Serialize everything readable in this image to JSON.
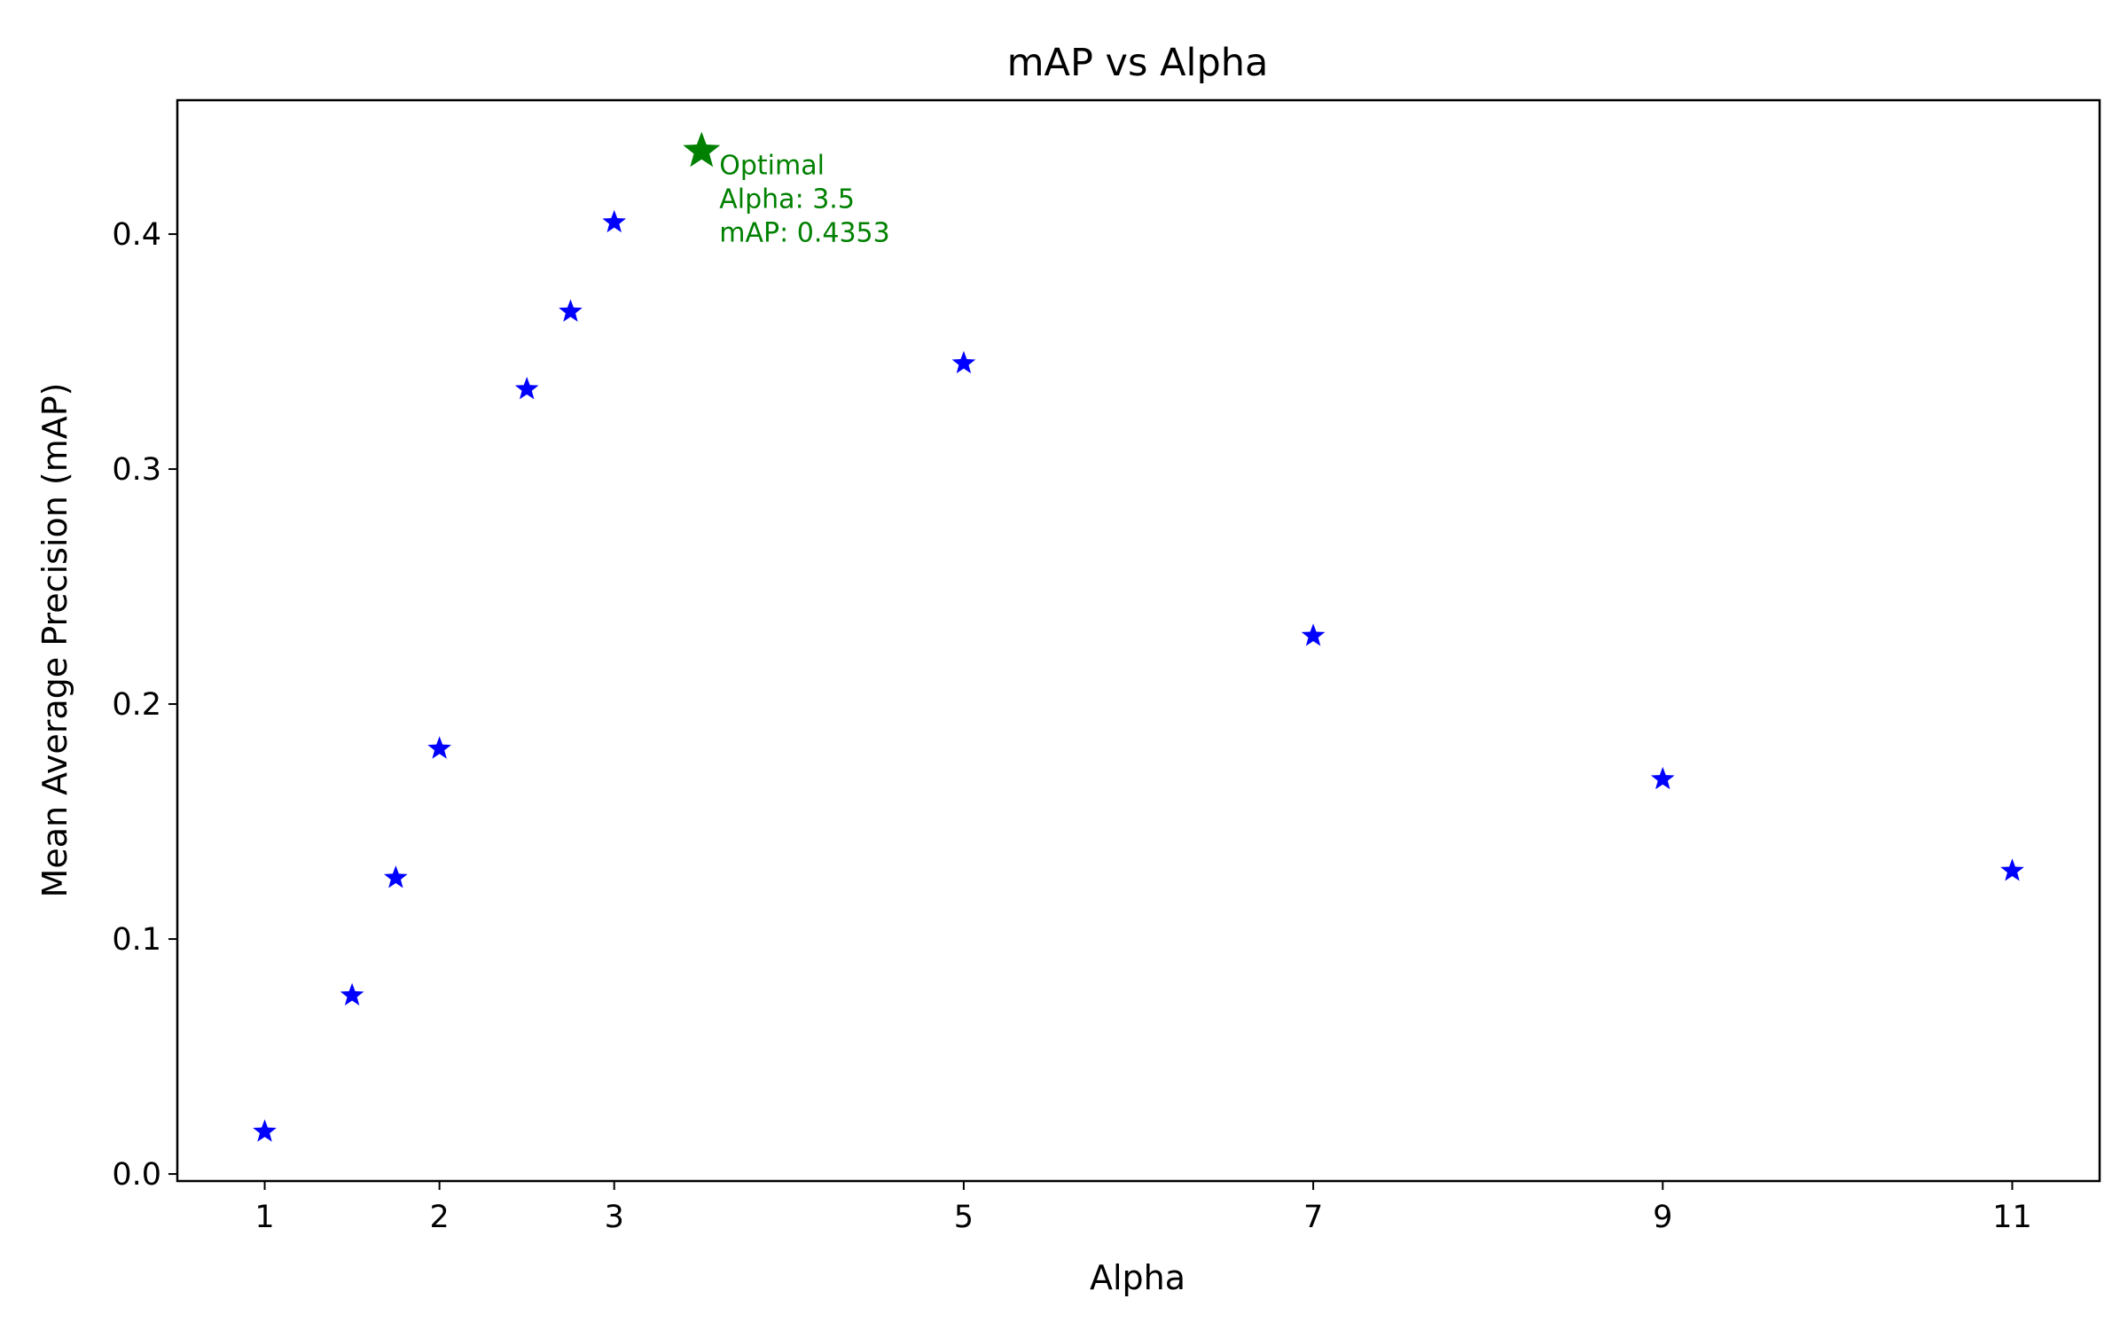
{
  "chart_data": {
    "type": "scatter",
    "title": "mAP vs Alpha",
    "xlabel": "Alpha",
    "ylabel": "Mean Average Precision (mAP)",
    "xlim": [
      0.5,
      11.5
    ],
    "ylim": [
      -0.003,
      0.457
    ],
    "xticks": [
      1,
      2,
      3,
      5,
      7,
      9,
      11
    ],
    "yticks": [
      0.0,
      0.1,
      0.2,
      0.3,
      0.4
    ],
    "ytick_labels": [
      "0.0",
      "0.1",
      "0.2",
      "0.3",
      "0.4"
    ],
    "grid": false,
    "series": [
      {
        "marker": "star",
        "color": "#0000ff",
        "x": [
          1,
          1.5,
          1.75,
          2,
          2.5,
          2.75,
          3,
          5,
          7,
          9,
          11
        ],
        "y": [
          0.018,
          0.076,
          0.126,
          0.181,
          0.334,
          0.367,
          0.405,
          0.345,
          0.229,
          0.168,
          0.129
        ]
      }
    ],
    "highlight": {
      "marker": "star",
      "color": "#008000",
      "x": 3.5,
      "y": 0.4353
    },
    "annotation": {
      "lines": [
        "Optimal",
        "Alpha: 3.5",
        "mAP: 0.4353"
      ],
      "color": "#008000"
    }
  }
}
